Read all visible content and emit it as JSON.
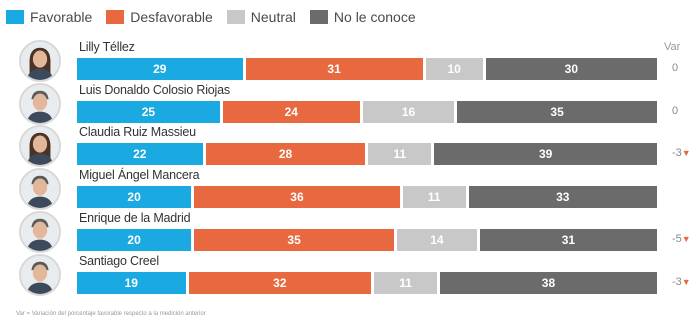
{
  "chart_data": {
    "type": "bar",
    "orientation": "horizontal",
    "stacked": true,
    "percent_of_total": true,
    "legend_position": "top-left",
    "categories": [
      "Lilly Téllez",
      "Luis Donaldo Colosio Riojas",
      "Claudia Ruiz Massieu",
      "Miguel Ángel Mancera",
      "Enrique de la Madrid",
      "Santiago Creel"
    ],
    "series": [
      {
        "name": "Favorable",
        "color": "#1aa9e0",
        "values": [
          29,
          25,
          22,
          20,
          20,
          19
        ]
      },
      {
        "name": "Desfavorable",
        "color": "#e8693f",
        "values": [
          31,
          24,
          28,
          36,
          35,
          32
        ]
      },
      {
        "name": "Neutral",
        "color": "#c8c8c8",
        "values": [
          10,
          16,
          11,
          11,
          14,
          11
        ]
      },
      {
        "name": "No le conoce",
        "color": "#6b6b6b",
        "values": [
          30,
          35,
          39,
          33,
          31,
          38
        ]
      }
    ],
    "var_header": "Var",
    "var_values": [
      "0",
      "0",
      "-3",
      "",
      "-5",
      "-3"
    ],
    "var_down": [
      false,
      false,
      true,
      false,
      true,
      true
    ],
    "footnote": "Var = Variación del porcentaje favorable respecto a la medición anterior"
  }
}
